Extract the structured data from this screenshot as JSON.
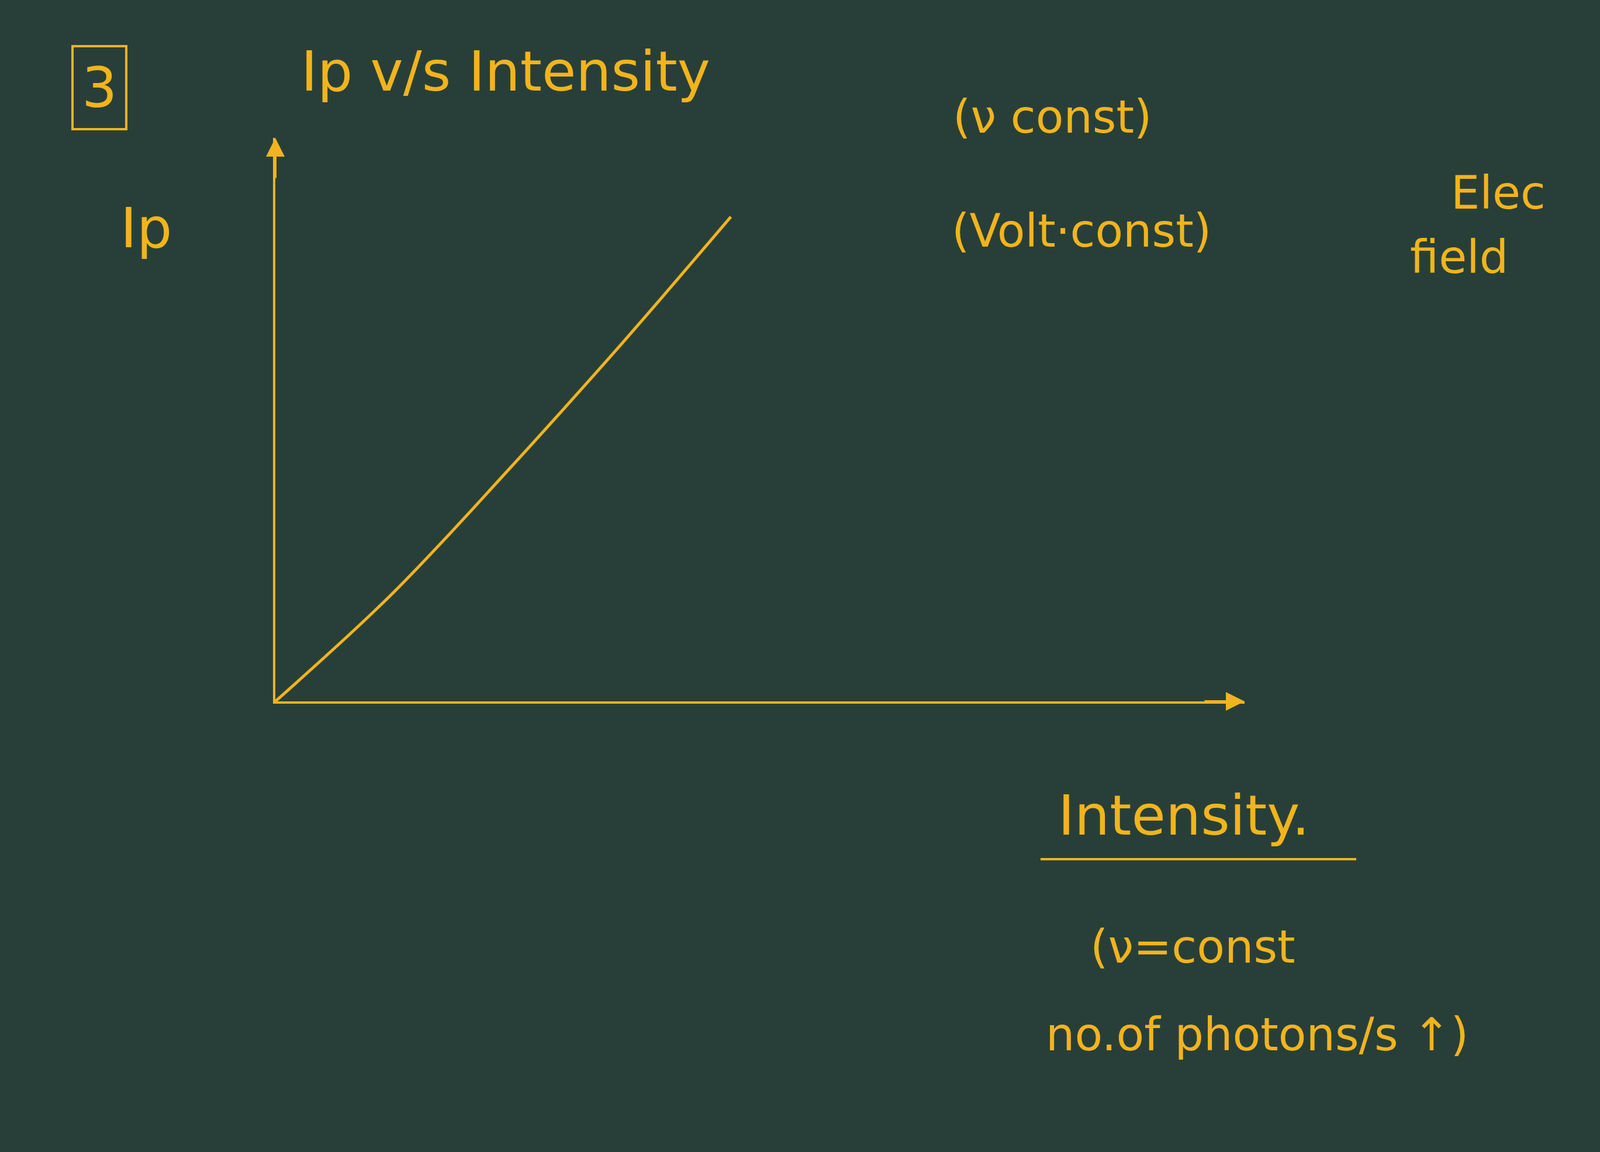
{
  "chart_data": {
    "type": "line",
    "title": "Ip v/s Intensity",
    "x_label": "Intensity.",
    "y_label": "Ip",
    "annotations": [
      "3",
      "(ν const)",
      "(Volt·const)",
      "Elec",
      "field",
      "(ν=const",
      "no.of photons/s ↑)"
    ],
    "x": [
      0,
      1.2,
      2.4,
      3.6,
      4.7
    ],
    "values": [
      0,
      1.9,
      4.1,
      6.4,
      8.6
    ],
    "xlim": [
      0,
      10
    ],
    "ylim": [
      0,
      10
    ],
    "xticks": [],
    "yticks": [],
    "tick_labels": false,
    "grid": false,
    "color": "#f2b41c",
    "line_style": "solid"
  }
}
